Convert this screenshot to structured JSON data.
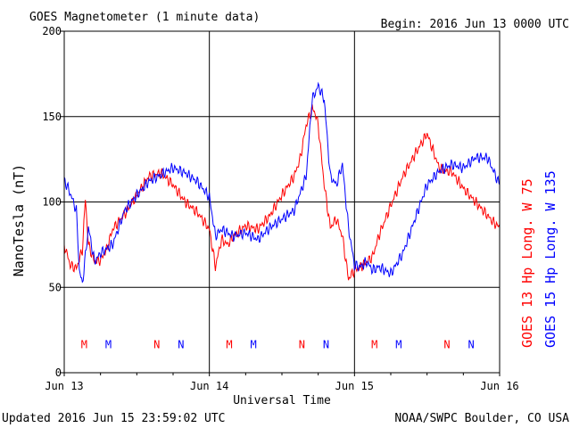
{
  "chart_data": {
    "type": "line",
    "title": "GOES Magnetometer (1 minute data)",
    "begin": "Begin:  2016 Jun 13 0000 UTC",
    "xlabel": "Universal Time",
    "ylabel": "NanoTesla (nT)",
    "ylim": [
      0,
      200
    ],
    "yticks": [
      "0",
      "50",
      "100",
      "150",
      "200"
    ],
    "xlim": [
      0,
      72
    ],
    "xticks": [
      "Jun 13",
      "Jun 14",
      "Jun 15",
      "Jun 16"
    ],
    "updated": "Updated 2016 Jun 15 23:59:02 UTC",
    "credit": "NOAA/SWPC Boulder, CO USA",
    "grid": true,
    "colors": {
      "goes13": "#ff0000",
      "goes15": "#0000ff",
      "axis": "#000000"
    },
    "series": [
      {
        "name": "GOES 13 Hp  Long. W 75",
        "color": "#ff0000",
        "x": [
          0,
          1,
          2,
          3,
          3.5,
          4,
          5,
          6,
          7,
          8,
          10,
          12,
          14,
          16,
          18,
          20,
          22,
          24,
          25,
          26,
          27,
          28,
          30,
          32,
          34,
          36,
          38,
          39,
          40,
          41,
          41.5,
          42,
          43,
          44,
          45,
          46,
          47,
          48,
          49,
          50,
          51,
          52,
          54,
          56,
          58,
          60,
          61,
          62,
          63,
          64,
          65,
          66,
          67,
          68,
          69,
          70,
          71,
          72
        ],
        "values": [
          75,
          63,
          61,
          72,
          102,
          75,
          65,
          66,
          72,
          84,
          93,
          104,
          115,
          117,
          110,
          100,
          94,
          84,
          62,
          78,
          75,
          80,
          86,
          84,
          92,
          104,
          115,
          125,
          145,
          155,
          152,
          145,
          110,
          85,
          90,
          80,
          55,
          60,
          62,
          65,
          68,
          80,
          98,
          115,
          128,
          140,
          130,
          120,
          118,
          118,
          113,
          108,
          104,
          100,
          96,
          92,
          88,
          85
        ]
      },
      {
        "name": "GOES 15 Hp  Long. W 135",
        "color": "#0000ff",
        "x": [
          0,
          1,
          2,
          2.5,
          3,
          4,
          5,
          6,
          8,
          10,
          12,
          14,
          16,
          18,
          20,
          22,
          24,
          25,
          26,
          28,
          30,
          32,
          34,
          36,
          38,
          40,
          41,
          42,
          43,
          44,
          45,
          46,
          47,
          48,
          49,
          50,
          51,
          52,
          54,
          56,
          58,
          60,
          62,
          64,
          66,
          68,
          70,
          71,
          72
        ],
        "values": [
          113,
          105,
          95,
          60,
          52,
          85,
          65,
          70,
          75,
          95,
          104,
          112,
          116,
          120,
          117,
          112,
          103,
          80,
          84,
          80,
          82,
          78,
          85,
          90,
          95,
          115,
          160,
          168,
          160,
          115,
          110,
          122,
          85,
          63,
          62,
          65,
          60,
          62,
          58,
          70,
          90,
          110,
          118,
          122,
          120,
          126,
          126,
          118,
          110
        ]
      }
    ],
    "markers": [
      {
        "label": "M",
        "color": "#ff0000",
        "x": 3.3
      },
      {
        "label": "M",
        "color": "#0000ff",
        "x": 7.3
      },
      {
        "label": "N",
        "color": "#ff0000",
        "x": 15.3
      },
      {
        "label": "N",
        "color": "#0000ff",
        "x": 19.3
      },
      {
        "label": "M",
        "color": "#ff0000",
        "x": 27.3
      },
      {
        "label": "M",
        "color": "#0000ff",
        "x": 31.3
      },
      {
        "label": "N",
        "color": "#ff0000",
        "x": 39.3
      },
      {
        "label": "N",
        "color": "#0000ff",
        "x": 43.3
      },
      {
        "label": "M",
        "color": "#ff0000",
        "x": 51.3
      },
      {
        "label": "M",
        "color": "#0000ff",
        "x": 55.3
      },
      {
        "label": "N",
        "color": "#ff0000",
        "x": 63.3
      },
      {
        "label": "N",
        "color": "#0000ff",
        "x": 67.3
      }
    ],
    "markers_y": 17
  }
}
